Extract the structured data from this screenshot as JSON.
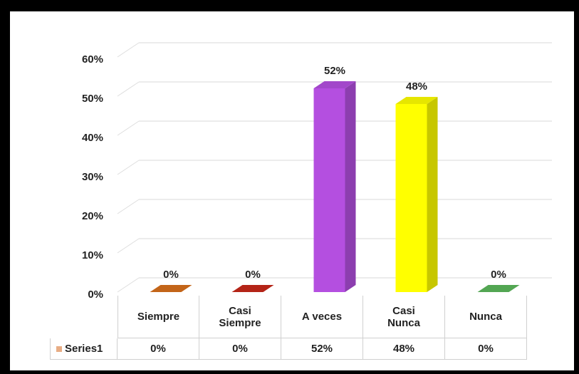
{
  "chart_data": {
    "type": "bar3d",
    "categories": [
      "Siempre",
      "Casi Siempre",
      "A veces",
      "Casi Nunca",
      "Nunca"
    ],
    "series": [
      {
        "name": "Series1",
        "color": "#e8ad85",
        "values": [
          0,
          0,
          52,
          48,
          0
        ],
        "value_labels": [
          "0%",
          "0%",
          "52%",
          "48%",
          "0%"
        ],
        "colors": [
          "#d9701c",
          "#c8281a",
          "#b44fe0",
          "#ffff00",
          "#5cb85c"
        ]
      }
    ],
    "ylim": [
      0,
      60
    ],
    "yticks": [
      {
        "value": 0,
        "label": "0%"
      },
      {
        "value": 10,
        "label": "10%"
      },
      {
        "value": 20,
        "label": "20%"
      },
      {
        "value": 30,
        "label": "30%"
      },
      {
        "value": 40,
        "label": "40%"
      },
      {
        "value": 50,
        "label": "50%"
      },
      {
        "value": 60,
        "label": "60%"
      }
    ],
    "grid": true
  }
}
